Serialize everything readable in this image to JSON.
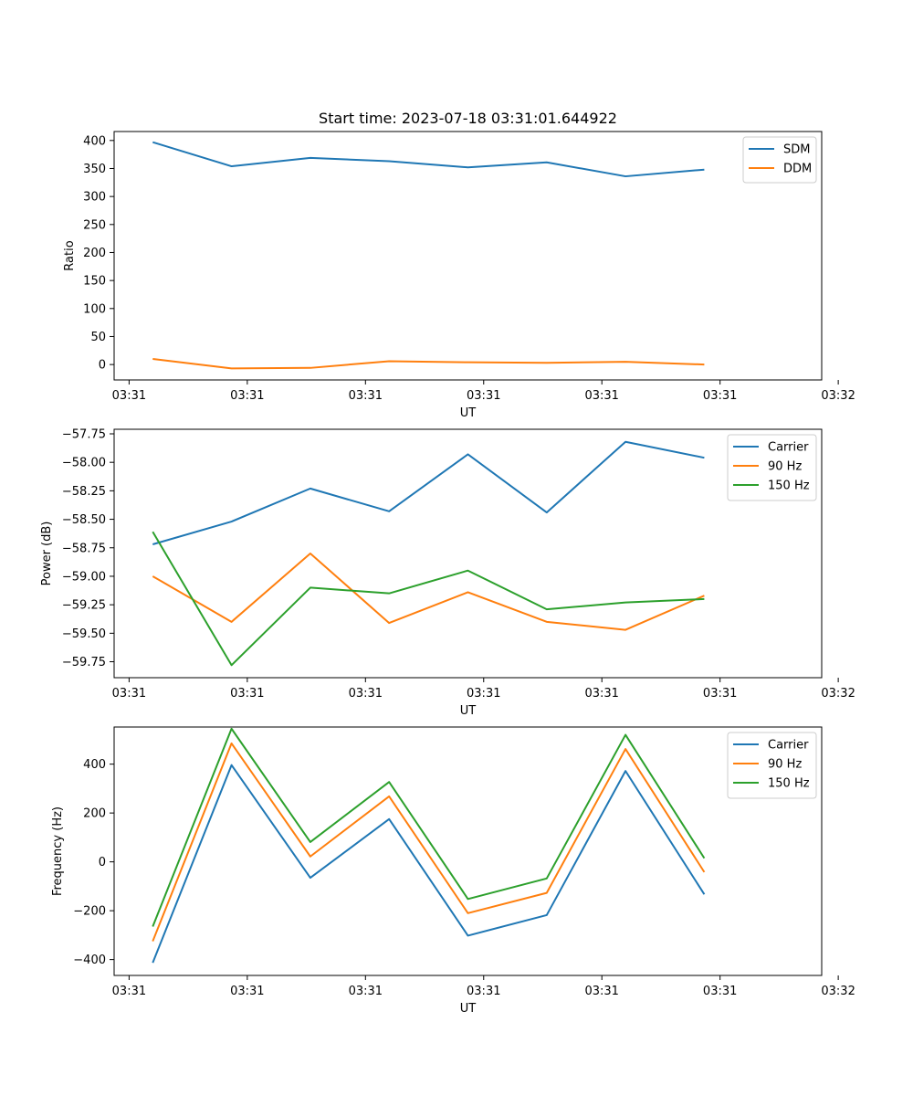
{
  "figure": {
    "title": "Start time: 2023-07-18 03:31:01.644922"
  },
  "chart_data": [
    {
      "type": "line",
      "title": "Start time: 2023-07-18 03:31:01.644922",
      "xlabel": "UT",
      "ylabel": "Ratio",
      "xlim": [
        -0.49,
        8.49
      ],
      "ylim": [
        -27.5,
        416
      ],
      "x_ticks": [
        -0.3,
        1.2,
        2.7,
        4.2,
        5.7,
        7.2,
        8.7
      ],
      "x_tick_labels": [
        "03:31",
        "03:31",
        "03:31",
        "03:31",
        "03:31",
        "03:31",
        "03:32"
      ],
      "y_ticks": [
        0,
        50,
        100,
        150,
        200,
        250,
        300,
        350,
        400
      ],
      "y_tick_labels": [
        "0",
        "50",
        "100",
        "150",
        "200",
        "250",
        "300",
        "350",
        "400"
      ],
      "x": [
        0,
        1,
        2,
        3,
        4,
        5,
        6,
        7
      ],
      "legend_position": "upper right",
      "series": [
        {
          "name": "SDM",
          "color": "#1f77b4",
          "values": [
            397,
            354,
            369,
            363,
            352,
            361,
            336,
            348
          ]
        },
        {
          "name": "DDM",
          "color": "#ff7f0e",
          "values": [
            10,
            -7,
            -6,
            6,
            4,
            3,
            5,
            0
          ]
        }
      ]
    },
    {
      "type": "line",
      "title": "",
      "xlabel": "UT",
      "ylabel": "Power (dB)",
      "xlim": [
        -0.49,
        8.49
      ],
      "ylim": [
        -59.89,
        -57.71
      ],
      "x_ticks": [
        -0.3,
        1.2,
        2.7,
        4.2,
        5.7,
        7.2,
        8.7
      ],
      "x_tick_labels": [
        "03:31",
        "03:31",
        "03:31",
        "03:31",
        "03:31",
        "03:31",
        "03:32"
      ],
      "y_ticks": [
        -57.75,
        -58.0,
        -58.25,
        -58.5,
        -58.75,
        -59.0,
        -59.25,
        -59.5,
        -59.75
      ],
      "y_tick_labels": [
        "−57.75",
        "−58.00",
        "−58.25",
        "−58.50",
        "−58.75",
        "−59.00",
        "−59.25",
        "−59.50",
        "−59.75"
      ],
      "x": [
        0,
        1,
        2,
        3,
        4,
        5,
        6,
        7
      ],
      "legend_position": "upper right",
      "series": [
        {
          "name": "Carrier",
          "color": "#1f77b4",
          "values": [
            -58.72,
            -58.52,
            -58.23,
            -58.43,
            -57.93,
            -58.44,
            -57.82,
            -57.96
          ]
        },
        {
          "name": "90 Hz",
          "color": "#ff7f0e",
          "values": [
            -59.0,
            -59.4,
            -58.8,
            -59.41,
            -59.14,
            -59.4,
            -59.47,
            -59.17
          ]
        },
        {
          "name": "150 Hz",
          "color": "#2ca02c",
          "values": [
            -58.61,
            -59.78,
            -59.1,
            -59.15,
            -58.95,
            -59.29,
            -59.23,
            -59.2
          ]
        }
      ]
    },
    {
      "type": "line",
      "title": "",
      "xlabel": "UT",
      "ylabel": "Frequency (Hz)",
      "xlim": [
        -0.49,
        8.49
      ],
      "ylim": [
        -465,
        552
      ],
      "x_ticks": [
        -0.3,
        1.2,
        2.7,
        4.2,
        5.7,
        7.2,
        8.7
      ],
      "x_tick_labels": [
        "03:31",
        "03:31",
        "03:31",
        "03:31",
        "03:31",
        "03:31",
        "03:32"
      ],
      "y_ticks": [
        -400,
        -200,
        0,
        200,
        400
      ],
      "y_tick_labels": [
        "−400",
        "−200",
        "0",
        "200",
        "400"
      ],
      "x": [
        0,
        1,
        2,
        3,
        4,
        5,
        6,
        7
      ],
      "legend_position": "upper right",
      "series": [
        {
          "name": "Carrier",
          "color": "#1f77b4",
          "values": [
            -413,
            396,
            -65,
            175,
            -302,
            -218,
            372,
            -133
          ]
        },
        {
          "name": "90 Hz",
          "color": "#ff7f0e",
          "values": [
            -325,
            485,
            22,
            268,
            -210,
            -127,
            462,
            -42
          ]
        },
        {
          "name": "150 Hz",
          "color": "#2ca02c",
          "values": [
            -265,
            545,
            81,
            327,
            -152,
            -68,
            520,
            15
          ]
        }
      ]
    }
  ]
}
